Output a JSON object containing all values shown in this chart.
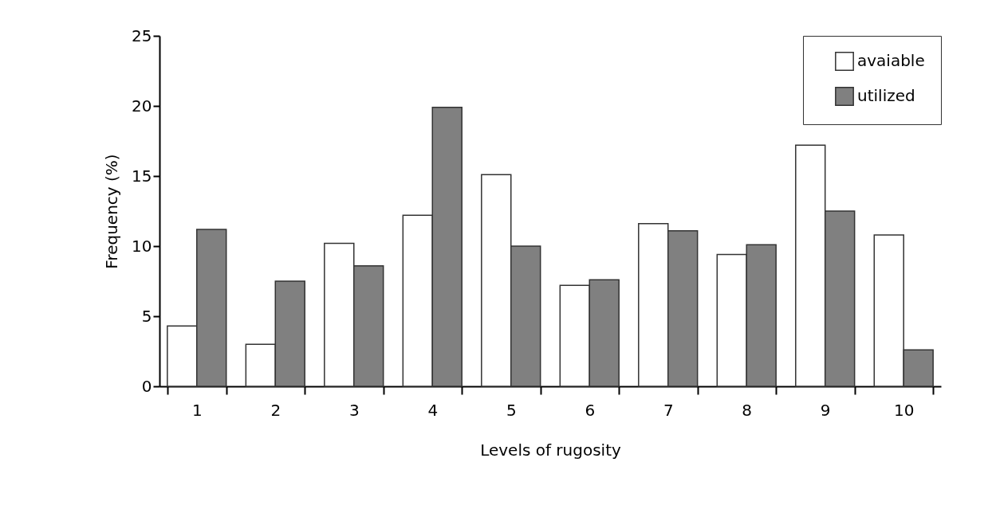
{
  "chart_data": {
    "type": "bar",
    "xlabel": "Levels of rugosity",
    "ylabel": "Frequency (%)",
    "categories": [
      "1",
      "2",
      "3",
      "4",
      "5",
      "6",
      "7",
      "8",
      "9",
      "10"
    ],
    "series": [
      {
        "name": "avaiable",
        "color": "#ffffff",
        "values": [
          4.3,
          3.0,
          10.2,
          12.2,
          15.1,
          7.2,
          11.6,
          9.4,
          17.2,
          10.8
        ]
      },
      {
        "name": "utilized",
        "color": "#808080",
        "values": [
          11.2,
          7.5,
          8.6,
          19.9,
          10.0,
          7.6,
          11.1,
          10.1,
          12.5,
          2.6
        ]
      }
    ],
    "ylim": [
      0,
      25
    ],
    "yticks": [
      0,
      5,
      10,
      15,
      20,
      25
    ],
    "grid": false,
    "legend": "top right"
  }
}
